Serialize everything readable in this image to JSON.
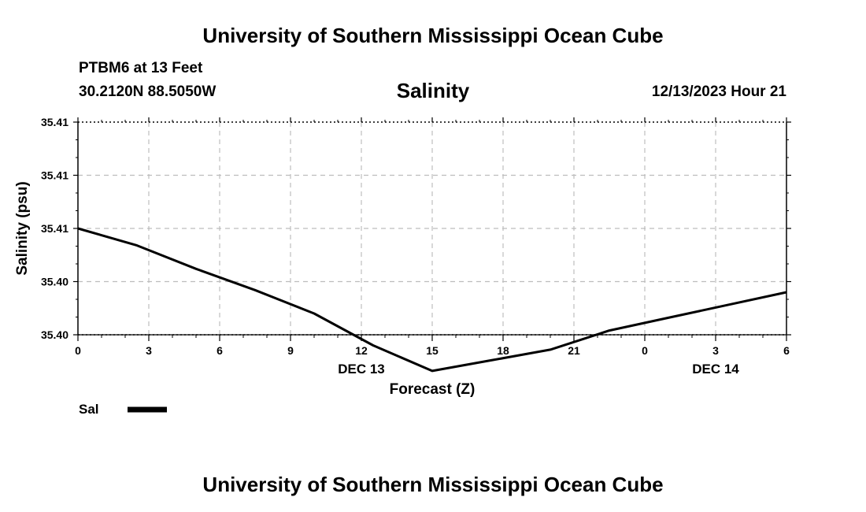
{
  "header": {
    "title": "University of Southern Mississippi Ocean Cube",
    "station": "PTBM6 at 13 Feet",
    "coords": "30.2120N  88.5050W",
    "datetime": "12/13/2023 Hour 21"
  },
  "footer": {
    "title": "University of Southern Mississippi Ocean Cube"
  },
  "legend": {
    "label": "Sal",
    "color": "#000000"
  },
  "chart_data": {
    "type": "line",
    "title": "Salinity",
    "xlabel": "Forecast (Z)",
    "ylabel": "Salinity (psu)",
    "x_tick_labels": [
      "0",
      "3",
      "6",
      "9",
      "12",
      "15",
      "18",
      "21",
      "0",
      "3",
      "6"
    ],
    "x_day_labels": [
      {
        "label": "DEC 13",
        "at_hours": 12
      },
      {
        "label": "DEC 14",
        "at_hours": 27
      }
    ],
    "y_tick_labels": [
      "35.40",
      "35.40",
      "35.41",
      "35.41",
      "35.41"
    ],
    "xlim_hours": [
      0,
      30
    ],
    "ylim": [
      35.4,
      35.41
    ],
    "grid": true,
    "legend_position": "bottom-left",
    "series": [
      {
        "name": "Sal",
        "color": "#000000",
        "x_hours": [
          0,
          2.5,
          5,
          7.5,
          10,
          12.5,
          15,
          17.5,
          20,
          22.5,
          25,
          27.5,
          30
        ],
        "y": [
          35.405,
          35.4042,
          35.4031,
          35.4021,
          35.401,
          35.3995,
          35.3983,
          35.3988,
          35.3993,
          35.4002,
          35.4008,
          35.4014,
          35.402
        ]
      }
    ]
  }
}
